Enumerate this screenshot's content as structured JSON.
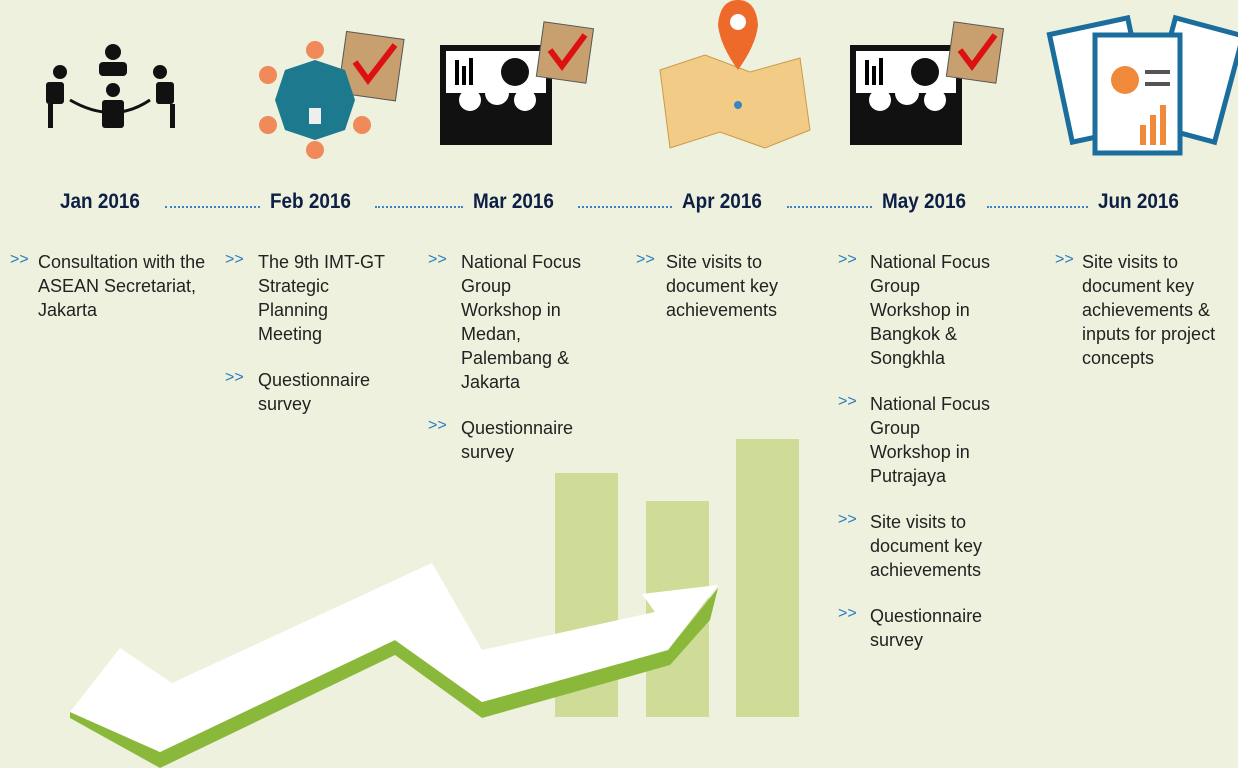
{
  "bullet": ">>",
  "timeline": [
    {
      "date": "Jan 2016",
      "items": [
        "Consultation with the ASEAN Secretariat, Jakarta"
      ]
    },
    {
      "date": "Feb 2016",
      "items": [
        "The 9th IMT-GT Strategic Planning Meeting",
        "Questionnaire survey"
      ]
    },
    {
      "date": "Mar 2016",
      "items": [
        "National Focus Group Workshop in Medan, Palembang & Jakarta",
        "Questionnaire survey"
      ]
    },
    {
      "date": "Apr 2016",
      "items": [
        "Site visits to document key achievements"
      ]
    },
    {
      "date": "May 2016",
      "items": [
        "National Focus Group Workshop in Bangkok & Songkhla",
        "National Focus Group Workshop in Putrajaya",
        "Site visits to document key achievements",
        "Questionnaire survey"
      ]
    },
    {
      "date": "Jun 2016",
      "items": [
        "Site visits to document key achievements & inputs for project concepts"
      ]
    }
  ]
}
